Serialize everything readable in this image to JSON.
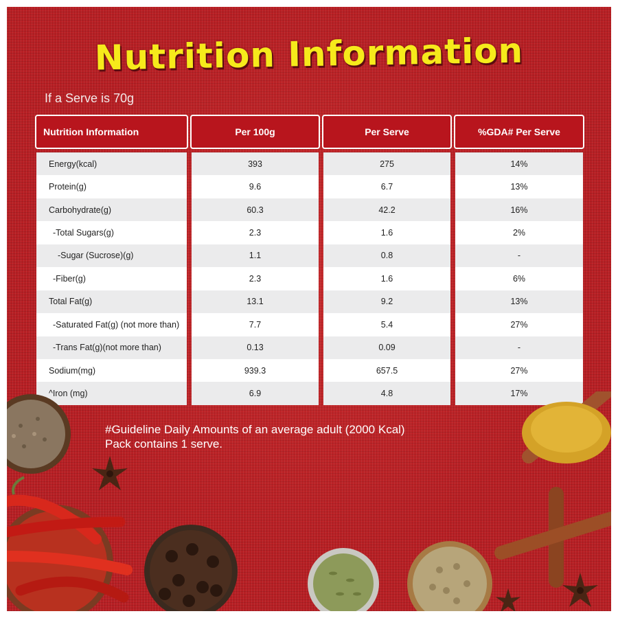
{
  "title": "Nutrition Information",
  "serve_note": "If a Serve is 70g",
  "headers": [
    "Nutrition Information",
    "Per 100g",
    "Per Serve",
    "%GDA# Per Serve"
  ],
  "rows": [
    {
      "label": "Energy(kcal)",
      "per100": "393",
      "perServe": "275",
      "gda": "14%"
    },
    {
      "label": "Protein(g)",
      "per100": "9.6",
      "perServe": "6.7",
      "gda": "13%"
    },
    {
      "label": "Carbohydrate(g)",
      "per100": "60.3",
      "perServe": "42.2",
      "gda": "16%"
    },
    {
      "label": " -Total Sugars(g)",
      "per100": "2.3",
      "perServe": "1.6",
      "gda": "2%"
    },
    {
      "label": "   -Sugar (Sucrose)(g)",
      "per100": "1.1",
      "perServe": "0.8",
      "gda": "-"
    },
    {
      "label": " -Fiber(g)",
      "per100": "2.3",
      "perServe": "1.6",
      "gda": "6%"
    },
    {
      "label": "Total Fat(g)",
      "per100": "13.1",
      "perServe": "9.2",
      "gda": "13%"
    },
    {
      "label": " -Saturated Fat(g) (not more than)",
      "per100": "7.7",
      "perServe": "5.4",
      "gda": "27%"
    },
    {
      "label": " -Trans Fat(g)(not more than)",
      "per100": "0.13",
      "perServe": "0.09",
      "gda": "-"
    },
    {
      "label": "Sodium(mg)",
      "per100": "939.3",
      "perServe": "657.5",
      "gda": "27%"
    },
    {
      "label": "^Iron (mg)",
      "per100": "6.9",
      "perServe": "4.8",
      "gda": "17%"
    }
  ],
  "footnote": {
    "line1": "#Guideline Daily Amounts of an average adult (2000 Kcal)",
    "line2": "Pack contains 1 serve."
  },
  "colors": {
    "background": "#b71f24",
    "header": "#b8151d",
    "title": "#f6ea1b"
  },
  "decor": [
    "cumin-bowl",
    "star-anise",
    "red-chillies",
    "cloves-bowl",
    "fennel-bowl",
    "coriander-bowl",
    "cinnamon-sticks",
    "turmeric-spoon"
  ]
}
